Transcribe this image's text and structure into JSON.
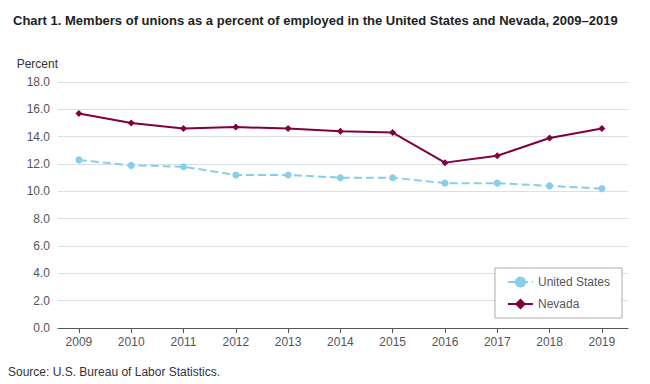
{
  "chart_data": {
    "type": "line",
    "title": "Chart 1. Members of unions as a percent of employed in the United States and Nevada, 2009–2019",
    "ylabel": "Percent",
    "annotations": [
      "Source: U.S. Bureau of Labor Statistics."
    ],
    "x": [
      2009,
      2010,
      2011,
      2012,
      2013,
      2014,
      2015,
      2016,
      2017,
      2018,
      2019
    ],
    "xlim": [
      2008.6,
      2019.5
    ],
    "xticks": [
      2009,
      2010,
      2011,
      2012,
      2013,
      2014,
      2015,
      2016,
      2017,
      2018,
      2019
    ],
    "ylim": [
      0.0,
      18.0
    ],
    "yticks": [
      {
        "value": 0,
        "label": "0.0"
      },
      {
        "value": 2,
        "label": "2.0"
      },
      {
        "value": 4,
        "label": "4.0"
      },
      {
        "value": 6,
        "label": "6.0"
      },
      {
        "value": 8,
        "label": "8.0"
      },
      {
        "value": 10,
        "label": "10.0"
      },
      {
        "value": 12,
        "label": "12.0"
      },
      {
        "value": 14,
        "label": "14.0"
      },
      {
        "value": 16,
        "label": "16.0"
      },
      {
        "value": 18,
        "label": "18.0"
      }
    ],
    "grid": true,
    "legend": "lower right",
    "series": [
      {
        "name": "United States",
        "color": "#87ceeb",
        "marker": "circle",
        "line_style": "dashed",
        "values": [
          12.3,
          11.9,
          11.8,
          11.2,
          11.2,
          11.0,
          11.0,
          10.6,
          10.6,
          10.4,
          10.2
        ]
      },
      {
        "name": "Nevada",
        "color": "#800040",
        "marker": "diamond",
        "line_style": "solid",
        "values": [
          15.7,
          15.0,
          14.6,
          14.7,
          14.6,
          14.4,
          14.3,
          12.1,
          12.6,
          13.9,
          14.6
        ]
      }
    ]
  }
}
